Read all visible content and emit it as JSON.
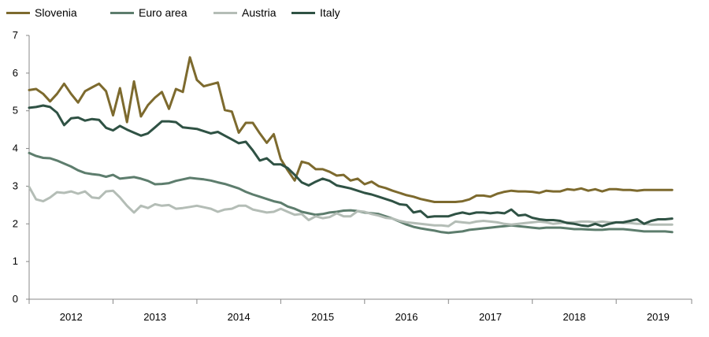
{
  "chart_data": {
    "type": "line",
    "title": "",
    "xlabel": "",
    "ylabel": "",
    "ylim": [
      0,
      7
    ],
    "yticks": [
      0,
      1,
      2,
      3,
      4,
      5,
      6,
      7
    ],
    "xlim": [
      2011.5,
      2019.4
    ],
    "xticks": [
      {
        "label": "2012",
        "x": 2012.0
      },
      {
        "label": "2013",
        "x": 2013.0
      },
      {
        "label": "2014",
        "x": 2014.0
      },
      {
        "label": "2015",
        "x": 2015.0
      },
      {
        "label": "2016",
        "x": 2016.0
      },
      {
        "label": "2017",
        "x": 2017.0
      },
      {
        "label": "2018",
        "x": 2018.0
      },
      {
        "label": "2019",
        "x": 2019.0
      }
    ],
    "year_boundaries": [
      2011.5,
      2012.5,
      2013.5,
      2014.5,
      2015.5,
      2016.5,
      2017.5,
      2018.5,
      2019.4
    ],
    "legend_position": "top-left",
    "x": [
      2011.5,
      2011.583,
      2011.667,
      2011.75,
      2011.833,
      2011.917,
      2012.0,
      2012.083,
      2012.167,
      2012.25,
      2012.333,
      2012.417,
      2012.5,
      2012.583,
      2012.667,
      2012.75,
      2012.833,
      2012.917,
      2013.0,
      2013.083,
      2013.167,
      2013.25,
      2013.333,
      2013.417,
      2013.5,
      2013.583,
      2013.667,
      2013.75,
      2013.833,
      2013.917,
      2014.0,
      2014.083,
      2014.167,
      2014.25,
      2014.333,
      2014.417,
      2014.5,
      2014.583,
      2014.667,
      2014.75,
      2014.833,
      2014.917,
      2015.0,
      2015.083,
      2015.167,
      2015.25,
      2015.333,
      2015.417,
      2015.5,
      2015.583,
      2015.667,
      2015.75,
      2015.833,
      2015.917,
      2016.0,
      2016.083,
      2016.167,
      2016.25,
      2016.333,
      2016.417,
      2016.5,
      2016.583,
      2016.667,
      2016.75,
      2016.833,
      2016.917,
      2017.0,
      2017.083,
      2017.167,
      2017.25,
      2017.333,
      2017.417,
      2017.5,
      2017.583,
      2017.667,
      2017.75,
      2017.833,
      2017.917,
      2018.0,
      2018.083,
      2018.167,
      2018.25,
      2018.333,
      2018.417,
      2018.5,
      2018.583,
      2018.667,
      2018.75,
      2018.833,
      2018.917,
      2019.0,
      2019.083,
      2019.167
    ],
    "series": [
      {
        "name": "Slovenia",
        "color": "#7d6a2e",
        "values": [
          5.55,
          5.58,
          5.45,
          5.25,
          5.45,
          5.72,
          5.45,
          5.22,
          5.52,
          5.62,
          5.72,
          5.52,
          4.88,
          5.6,
          4.7,
          5.78,
          4.85,
          5.15,
          5.35,
          5.5,
          5.05,
          5.58,
          5.5,
          6.42,
          5.82,
          5.65,
          5.7,
          5.75,
          5.02,
          4.98,
          4.42,
          4.68,
          4.68,
          4.4,
          4.15,
          4.38,
          3.72,
          3.42,
          3.15,
          3.65,
          3.6,
          3.45,
          3.45,
          3.38,
          3.28,
          3.3,
          3.15,
          3.2,
          3.05,
          3.12,
          3.0,
          2.95,
          2.88,
          2.82,
          2.76,
          2.72,
          2.66,
          2.62,
          2.58,
          2.58,
          2.58,
          2.58,
          2.6,
          2.65,
          2.75,
          2.75,
          2.72,
          2.8,
          2.85,
          2.88,
          2.86,
          2.86,
          2.85,
          2.82,
          2.88,
          2.86,
          2.86,
          2.92,
          2.9,
          2.94,
          2.88,
          2.92,
          2.86,
          2.92,
          2.92,
          2.9,
          2.9,
          2.88,
          2.9,
          2.9,
          2.9,
          2.9,
          2.9
        ]
      },
      {
        "name": "Euro area",
        "color": "#5d7d6d",
        "values": [
          3.88,
          3.8,
          3.75,
          3.74,
          3.68,
          3.6,
          3.52,
          3.42,
          3.35,
          3.32,
          3.3,
          3.25,
          3.3,
          3.2,
          3.22,
          3.24,
          3.2,
          3.14,
          3.05,
          3.06,
          3.08,
          3.14,
          3.18,
          3.22,
          3.2,
          3.18,
          3.15,
          3.1,
          3.06,
          3.0,
          2.94,
          2.85,
          2.78,
          2.72,
          2.66,
          2.6,
          2.56,
          2.46,
          2.4,
          2.32,
          2.28,
          2.24,
          2.26,
          2.3,
          2.32,
          2.35,
          2.36,
          2.34,
          2.3,
          2.28,
          2.26,
          2.2,
          2.14,
          2.06,
          1.98,
          1.92,
          1.88,
          1.85,
          1.82,
          1.78,
          1.76,
          1.78,
          1.8,
          1.84,
          1.86,
          1.88,
          1.9,
          1.92,
          1.94,
          1.96,
          1.94,
          1.92,
          1.9,
          1.88,
          1.9,
          1.9,
          1.9,
          1.88,
          1.86,
          1.86,
          1.85,
          1.84,
          1.84,
          1.86,
          1.86,
          1.86,
          1.84,
          1.82,
          1.8,
          1.8,
          1.8,
          1.8,
          1.78
        ]
      },
      {
        "name": "Austria",
        "color": "#b4bdb6",
        "values": [
          2.98,
          2.65,
          2.6,
          2.7,
          2.84,
          2.82,
          2.86,
          2.8,
          2.86,
          2.7,
          2.68,
          2.86,
          2.88,
          2.7,
          2.48,
          2.3,
          2.48,
          2.42,
          2.52,
          2.48,
          2.5,
          2.4,
          2.42,
          2.45,
          2.48,
          2.44,
          2.4,
          2.32,
          2.38,
          2.4,
          2.48,
          2.48,
          2.38,
          2.34,
          2.3,
          2.32,
          2.4,
          2.32,
          2.24,
          2.26,
          2.1,
          2.2,
          2.15,
          2.18,
          2.28,
          2.2,
          2.2,
          2.34,
          2.32,
          2.26,
          2.22,
          2.16,
          2.14,
          2.08,
          2.04,
          2.02,
          2.0,
          1.98,
          1.96,
          1.96,
          1.94,
          2.06,
          2.04,
          2.02,
          2.06,
          2.08,
          2.06,
          2.04,
          2.0,
          1.98,
          2.0,
          2.02,
          2.04,
          2.06,
          2.04,
          2.0,
          2.02,
          2.04,
          2.04,
          2.06,
          2.06,
          2.04,
          2.06,
          2.04,
          2.04,
          2.02,
          2.02,
          2.0,
          2.0,
          1.98,
          1.98,
          1.98,
          1.98
        ]
      },
      {
        "name": "Italy",
        "color": "#2f5244",
        "values": [
          5.08,
          5.1,
          5.14,
          5.1,
          4.95,
          4.62,
          4.8,
          4.82,
          4.74,
          4.78,
          4.76,
          4.55,
          4.48,
          4.6,
          4.5,
          4.42,
          4.34,
          4.4,
          4.56,
          4.72,
          4.72,
          4.7,
          4.56,
          4.54,
          4.52,
          4.46,
          4.4,
          4.44,
          4.34,
          4.24,
          4.14,
          4.18,
          3.95,
          3.68,
          3.74,
          3.58,
          3.58,
          3.48,
          3.3,
          3.1,
          3.02,
          3.12,
          3.2,
          3.14,
          3.02,
          2.98,
          2.94,
          2.88,
          2.82,
          2.78,
          2.72,
          2.66,
          2.6,
          2.52,
          2.5,
          2.3,
          2.34,
          2.18,
          2.2,
          2.2,
          2.2,
          2.26,
          2.3,
          2.26,
          2.3,
          2.3,
          2.28,
          2.3,
          2.28,
          2.38,
          2.22,
          2.24,
          2.16,
          2.12,
          2.1,
          2.1,
          2.08,
          2.02,
          2.0,
          1.96,
          1.94,
          2.0,
          1.94,
          2.0,
          2.04,
          2.04,
          2.08,
          2.12,
          2.0,
          2.08,
          2.12,
          2.12,
          2.14
        ]
      }
    ]
  }
}
